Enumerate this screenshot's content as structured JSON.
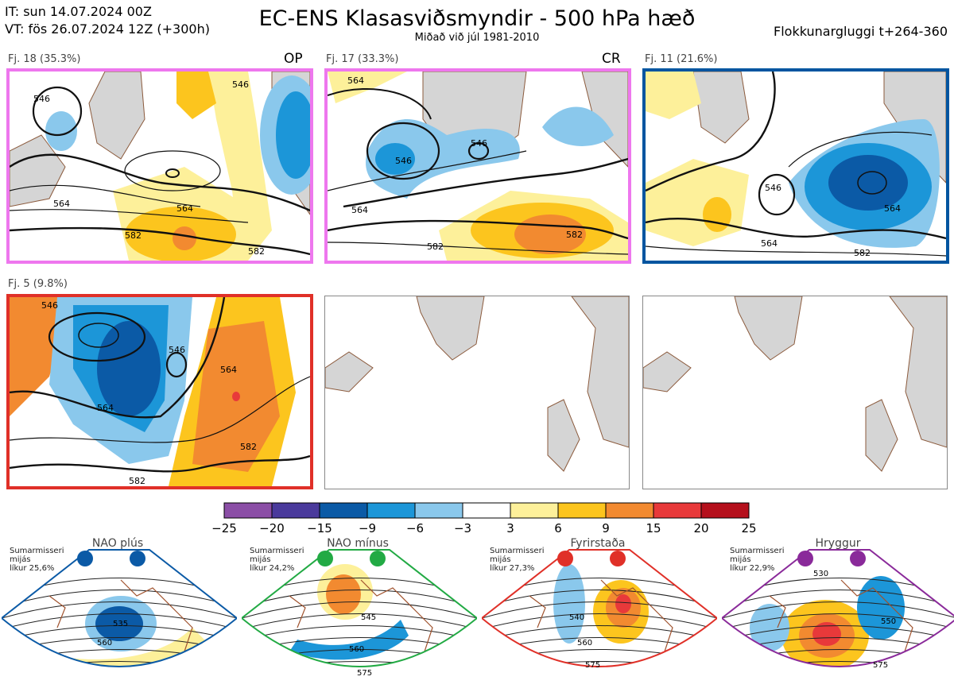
{
  "header": {
    "it": "IT: sun 14.07.2024 00Z",
    "vt": "VT: fös 26.07.2024 12Z  (+300h)",
    "title": "EC-ENS Klasasviðsmyndir - 500 hPa hæð",
    "subtitle": "Miðað við júl 1981-2010",
    "window": "Flokkunargluggi t+264-360"
  },
  "clusters": [
    {
      "label": "Fj. 18 (35.3%)",
      "tag": "OP",
      "border": "#ee77ee",
      "contours": [
        "546",
        "564",
        "582",
        "582",
        "564",
        "546"
      ]
    },
    {
      "label": "Fj. 17 (33.3%)",
      "tag": "CR",
      "border": "#ee77ee",
      "contours": [
        "564",
        "546",
        "546",
        "564",
        "582",
        "582"
      ]
    },
    {
      "label": "Fj. 11 (21.6%)",
      "tag": "",
      "border": "#0055a0",
      "contours": [
        "546",
        "564",
        "564",
        "582"
      ]
    },
    {
      "label": "Fj. 5 (9.8%)",
      "tag": "",
      "border": "#e03028",
      "contours": [
        "546",
        "564",
        "564",
        "582",
        "582",
        "546"
      ]
    }
  ],
  "colorbar": {
    "colors": [
      "#8b4ea6",
      "#4a3a9c",
      "#0b5aa6",
      "#1c96d8",
      "#8ac8ec",
      "#ffffff",
      "#fdf09a",
      "#fcc51e",
      "#f28a30",
      "#e8393a",
      "#b5101c"
    ],
    "labels": [
      "−25",
      "−20",
      "−15",
      "−9",
      "−6",
      "−3",
      "3",
      "6",
      "9",
      "15",
      "20",
      "25"
    ]
  },
  "regimes": [
    {
      "title": "NAO plús",
      "season": "Sumarmisseri",
      "period": "mijás",
      "likelihood": "líkur 25,6%",
      "color": "#0b5aa6",
      "contours": [
        "535",
        "560"
      ]
    },
    {
      "title": "NAO mínus",
      "season": "Sumarmisseri",
      "period": "mijás",
      "likelihood": "líkur 24,2%",
      "color": "#22aa44",
      "contours": [
        "545",
        "560",
        "575"
      ]
    },
    {
      "title": "Fyrirstaða",
      "season": "Sumarmisseri",
      "period": "mijás",
      "likelihood": "líkur 27,3%",
      "color": "#e03028",
      "contours": [
        "540",
        "560",
        "575"
      ]
    },
    {
      "title": "Hryggur",
      "season": "Sumarmisseri",
      "period": "mijás",
      "likelihood": "líkur 22,9%",
      "color": "#8a2a9a",
      "contours": [
        "530",
        "550",
        "575"
      ]
    }
  ]
}
